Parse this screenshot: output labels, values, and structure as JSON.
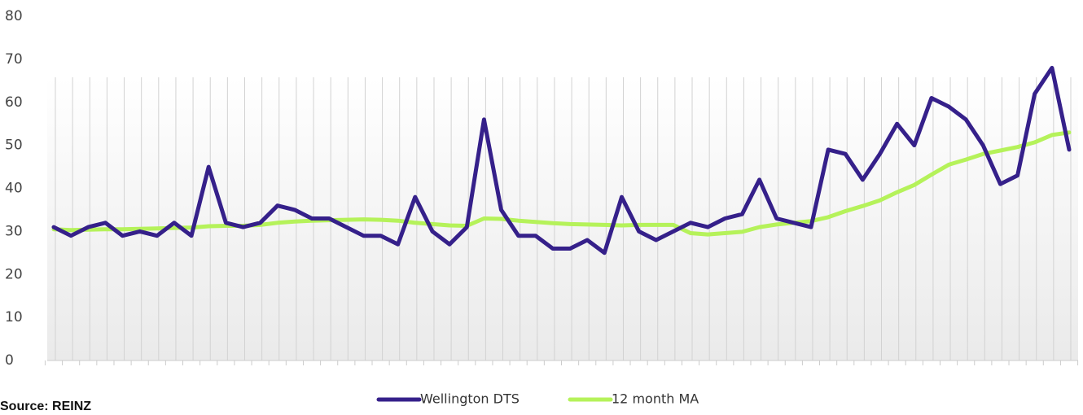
{
  "chart_data": {
    "type": "line",
    "categories": [
      null,
      null,
      null,
      null,
      null,
      null,
      null,
      null,
      null,
      null,
      null,
      null,
      null,
      null,
      null,
      null,
      null,
      null,
      null,
      null,
      null,
      null,
      null,
      null,
      null,
      null,
      null,
      null,
      null,
      null,
      null,
      null,
      null,
      null,
      null,
      null,
      null,
      null,
      null,
      null,
      null,
      null,
      null,
      null,
      null,
      null,
      null,
      null,
      null,
      null,
      null,
      null,
      null,
      null,
      null,
      null,
      null,
      null,
      null,
      null
    ],
    "series": [
      {
        "name": "Wellington DTS",
        "color": "#35208a",
        "values": [
          31,
          29,
          31,
          32,
          29,
          30,
          29,
          32,
          29,
          45,
          32,
          31,
          32,
          36,
          35,
          33,
          33,
          31,
          29,
          29,
          27,
          38,
          30,
          27,
          31,
          56,
          35,
          29,
          29,
          26,
          26,
          28,
          25,
          38,
          30,
          28,
          30,
          32,
          31,
          33,
          34,
          42,
          33,
          32,
          31,
          49,
          48,
          42,
          48,
          55,
          50,
          61,
          59,
          56,
          50,
          41,
          43,
          62,
          68,
          49
        ]
      },
      {
        "name": "12 month MA",
        "color": "#b5f25a",
        "values": [
          30.5,
          30.3,
          30.4,
          30.5,
          30.5,
          30.6,
          30.7,
          30.8,
          30.9,
          31.2,
          31.3,
          31.3,
          31.5,
          32.0,
          32.3,
          32.5,
          32.6,
          32.7,
          32.8,
          32.7,
          32.5,
          32.0,
          31.7,
          31.4,
          31.3,
          33.0,
          32.9,
          32.5,
          32.2,
          31.9,
          31.7,
          31.6,
          31.5,
          31.4,
          31.5,
          31.5,
          31.5,
          29.6,
          29.3,
          29.6,
          29.9,
          31.0,
          31.6,
          32.0,
          32.4,
          33.3,
          34.7,
          35.9,
          37.2,
          39.1,
          40.8,
          43.2,
          45.5,
          46.7,
          48.0,
          48.8,
          49.6,
          50.7,
          52.4,
          53.0
        ]
      }
    ],
    "ylim": [
      0,
      80
    ],
    "yticks": [
      0,
      10,
      20,
      30,
      40,
      50,
      60,
      70,
      80
    ],
    "legend": "bottom",
    "source": "Source: REINZ"
  }
}
